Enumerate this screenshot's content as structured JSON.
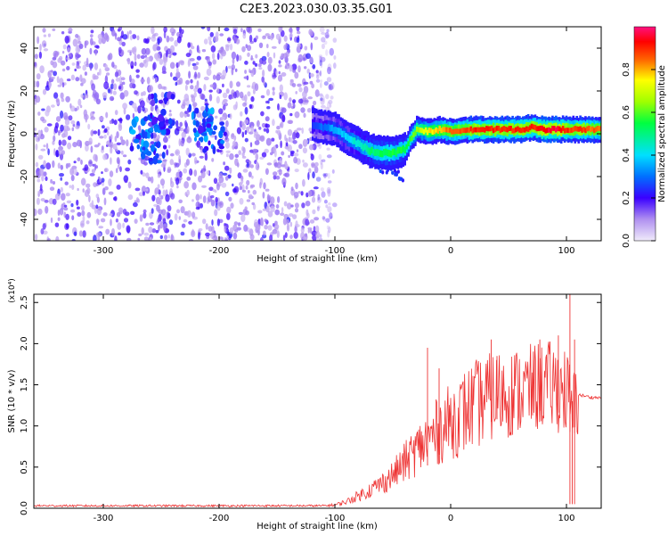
{
  "figure": {
    "title": "C2E3.2023.030.03.35.G01"
  },
  "chart_data": [
    {
      "type": "heatmap",
      "title": "",
      "xlabel": "Height of straight line (km)",
      "ylabel": "Frequency (Hz)",
      "xlim": [
        -360,
        130
      ],
      "ylim": [
        -50,
        50
      ],
      "xticks": [
        -300,
        -200,
        -100,
        0,
        100
      ],
      "yticks": [
        -40,
        -20,
        0,
        20,
        40
      ],
      "colorbar": {
        "label": "Normalized spectral amplitude",
        "range": [
          0,
          1
        ],
        "ticks": [
          "0.0",
          "0.2",
          "0.4",
          "0.6",
          "0.8"
        ],
        "colormap": [
          "#e8e0f8",
          "#8a2be2",
          "#3a00ff",
          "#0080ff",
          "#00ffff",
          "#00ff00",
          "#ffff00",
          "#ff8000",
          "#ff0000",
          "#ff00a0"
        ]
      },
      "noise_region": {
        "x_start": -360,
        "x_end": -100,
        "amplitude": 0.15
      },
      "ridge": {
        "x": [
          -120,
          -110,
          -100,
          -90,
          -80,
          -70,
          -60,
          -50,
          -40,
          -35,
          -30,
          -20,
          -10,
          0,
          10,
          20,
          30,
          40,
          50,
          60,
          70,
          80,
          90,
          100,
          105,
          110,
          120,
          130
        ],
        "frequency": [
          4,
          3,
          2,
          -2,
          -5,
          -8,
          -9,
          -9,
          -7,
          -2,
          2,
          1,
          2,
          1,
          2,
          2,
          2,
          2,
          2,
          2,
          3,
          2,
          2,
          2,
          2,
          2,
          2,
          2
        ],
        "amplitude": [
          0.25,
          0.3,
          0.35,
          0.4,
          0.45,
          0.5,
          0.55,
          0.55,
          0.55,
          0.6,
          0.65,
          0.75,
          0.8,
          0.85,
          0.85,
          0.9,
          0.9,
          0.9,
          0.9,
          0.9,
          0.9,
          0.95,
          0.95,
          0.9,
          0.85,
          0.9,
          0.85,
          0.85
        ]
      },
      "blobs": [
        {
          "x": -265,
          "frequency": 0,
          "amplitude": 0.35
        },
        {
          "x": -255,
          "frequency": -5,
          "amplitude": 0.3
        },
        {
          "x": -215,
          "frequency": 5,
          "amplitude": 0.35
        },
        {
          "x": -205,
          "frequency": 0,
          "amplitude": 0.3
        },
        {
          "x": -250,
          "frequency": 10,
          "amplitude": 0.25
        }
      ],
      "tail": {
        "x": [
          -80,
          -70,
          -60,
          -50,
          -40
        ],
        "frequency": [
          -9,
          -13,
          -16,
          -18,
          -21
        ]
      }
    },
    {
      "type": "line",
      "title": "",
      "xlabel": "Height of straight line (km)",
      "ylabel": "SNR (10 * v/v)",
      "scale_label": "(x10⁴)",
      "xlim": [
        -360,
        130
      ],
      "ylim": [
        0,
        2.6
      ],
      "xticks": [
        -300,
        -200,
        -100,
        0,
        100
      ],
      "yticks": [
        "0.0",
        "0.5",
        "1.0",
        "1.5",
        "2.0",
        "2.5"
      ],
      "series": [
        {
          "color": "#ee3333",
          "x": [
            -360,
            -340,
            -300,
            -250,
            -200,
            -150,
            -110,
            -100,
            -90,
            -80,
            -70,
            -60,
            -50,
            -40,
            -30,
            -20,
            -10,
            0,
            10,
            20,
            30,
            40,
            50,
            60,
            70,
            80,
            90,
            100,
            105,
            110,
            120,
            130
          ],
          "y": [
            0.03,
            0.03,
            0.03,
            0.03,
            0.03,
            0.03,
            0.03,
            0.04,
            0.08,
            0.15,
            0.22,
            0.3,
            0.4,
            0.55,
            0.7,
            0.82,
            0.95,
            1.05,
            1.15,
            1.25,
            1.32,
            1.38,
            1.4,
            1.42,
            1.45,
            1.5,
            1.48,
            1.42,
            1.1,
            1.38,
            1.35,
            1.34
          ]
        }
      ],
      "spikes": [
        {
          "x": -20,
          "y": 1.95
        },
        {
          "x": -10,
          "y": 1.7
        },
        {
          "x": 35,
          "y": 2.05
        },
        {
          "x": 40,
          "y": 1.85
        },
        {
          "x": 77,
          "y": 2.05
        },
        {
          "x": 93,
          "y": 2.1
        },
        {
          "x": 103,
          "y": 2.6
        },
        {
          "x": 107,
          "y": 2.05
        }
      ]
    }
  ]
}
